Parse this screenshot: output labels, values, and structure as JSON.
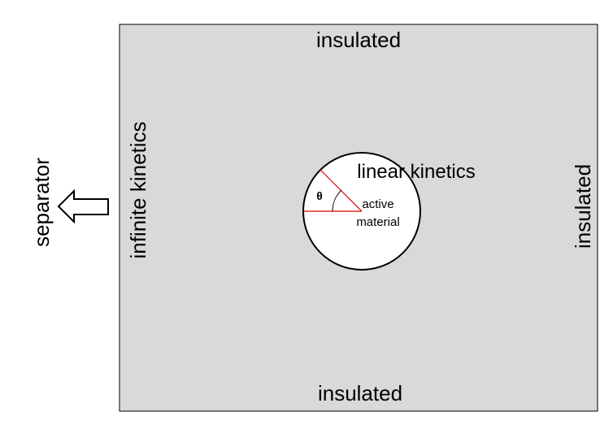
{
  "labels": {
    "top": "insulated",
    "bottom": "insulated",
    "right": "insulated",
    "left": "infinite kinetics",
    "separator": "separator",
    "particle_boundary": "linear kinetics",
    "particle_line1": "active",
    "particle_line2": "material",
    "angle": "θ"
  },
  "colors": {
    "domain_fill": "#d9d9d9",
    "domain_stroke": "#000000",
    "particle_fill": "#ffffff",
    "radius_lines": "#e00000"
  },
  "icons": {
    "separator_arrow": "left-arrow-icon"
  }
}
